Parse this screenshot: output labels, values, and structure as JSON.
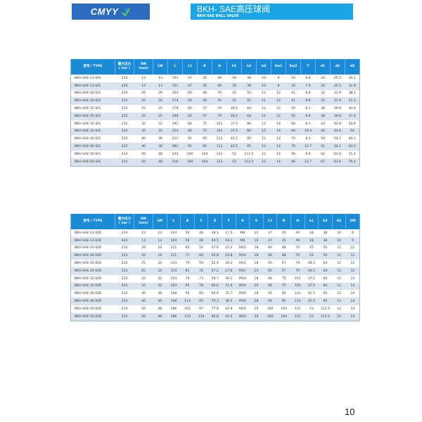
{
  "header": {
    "logo_text": "CMYY",
    "title": "BKH- SAE高压球阀",
    "subtitle": "BKH-SAE BALL VALVE",
    "colors": {
      "logo_bg": "#2b6cc0",
      "title_bg": "#1aa6e6",
      "table_header": "#1b8bd6",
      "row_alt": "#d9e3ee"
    }
  },
  "table1": {
    "columns": [
      [
        "型号 / TYPE",
        ""
      ],
      [
        "最大压力",
        "( bar )"
      ],
      [
        "DN",
        "(mm)"
      ],
      [
        "LW",
        ""
      ],
      [
        "L",
        ""
      ],
      [
        "L1",
        ""
      ],
      [
        "B",
        ""
      ],
      [
        "H",
        ""
      ],
      [
        "h1",
        ""
      ],
      [
        "h2",
        ""
      ],
      [
        "h3",
        ""
      ],
      [
        "Sw1",
        ""
      ],
      [
        "Sw2",
        ""
      ],
      [
        "T",
        ""
      ],
      [
        "d1",
        ""
      ],
      [
        "d2",
        ""
      ],
      [
        "d3",
        ""
      ]
    ],
    "rows": [
      [
        "BKH-SAE-13-S/S",
        "210",
        "13",
        "13",
        "151",
        "47",
        "35",
        "49",
        "18",
        "38",
        "10",
        "9",
        "10",
        "6.8",
        "24",
        "25.5",
        "30.2"
      ],
      [
        "BKH-SAE-13-S/S",
        "420",
        "13",
        "13",
        "151",
        "47",
        "35",
        "49",
        "18",
        "38",
        "10",
        "9",
        "10",
        "7.9",
        "24",
        "25.5",
        "31.8"
      ],
      [
        "BKH-SAE-20-S/S",
        "210",
        "20",
        "20",
        "162",
        "60",
        "48",
        "70",
        "25",
        "55",
        "11",
        "12",
        "41",
        "6.8",
        "32",
        "31.9",
        "38.1"
      ],
      [
        "BKH-SAE-20-S/S",
        "315",
        "20",
        "20",
        "174",
        "60",
        "48",
        "70",
        "25",
        "55",
        "11",
        "12",
        "41",
        "8.9",
        "32",
        "31.9",
        "41.3"
      ],
      [
        "BKH-SAE-25-S/S",
        "210",
        "25",
        "25",
        "178",
        "65",
        "57",
        "79",
        "28.5",
        "64",
        "11",
        "12",
        "50",
        "8.1",
        "38",
        "39.8",
        "44.4"
      ],
      [
        "BKH-SAE-25-S/S",
        "315",
        "25",
        "25",
        "198",
        "65",
        "57",
        "79",
        "28.5",
        "64",
        "11",
        "12",
        "50",
        "9.6",
        "38",
        "39.8",
        "47.6"
      ],
      [
        "BKH-SAE-32-S/S",
        "210",
        "32",
        "32",
        "191",
        "84",
        "75",
        "101",
        "37.5",
        "86",
        "12",
        "14",
        "60",
        "8.1",
        "43",
        "44.6",
        "50.8"
      ],
      [
        "BKH-SAE-32-S/S",
        "315",
        "32",
        "32",
        "223",
        "84",
        "75",
        "101",
        "37.5",
        "84",
        "12",
        "14",
        "60",
        "10.4",
        "44",
        "44.6",
        "54"
      ],
      [
        "BKH-SAE-40-S/S",
        "210",
        "40",
        "36",
        "231",
        "91",
        "85",
        "112",
        "42.5",
        "95",
        "12",
        "14",
        "70",
        "8.1",
        "50",
        "54.1",
        "60.3"
      ],
      [
        "BKH-SAE-40-S/S",
        "315",
        "40",
        "36",
        "281",
        "91",
        "85",
        "112",
        "42.5",
        "95",
        "12",
        "14",
        "70",
        "12.7",
        "51",
        "54.1",
        "63.5"
      ],
      [
        "BKH-SAE-50-S/S",
        "210",
        "50",
        "48",
        "232",
        "100",
        "104",
        "131",
        "53",
        "112.5",
        "12",
        "14",
        "90",
        "9.6",
        "62",
        "63.6",
        "71.4"
      ],
      [
        "BKH-SAE-50-S/S",
        "315",
        "50",
        "48",
        "316",
        "100",
        "104",
        "131",
        "53",
        "112.5",
        "12",
        "14",
        "90",
        "12.7",
        "67",
        "63.6",
        "79.4"
      ]
    ]
  },
  "table2": {
    "columns": [
      [
        "型号 / TYPE",
        ""
      ],
      [
        "最大压力",
        "( bar )"
      ],
      [
        "DN",
        "(mm)"
      ],
      [
        "LW",
        ""
      ],
      [
        "L",
        ""
      ],
      [
        "A",
        ""
      ],
      [
        "C",
        ""
      ],
      [
        "E",
        ""
      ],
      [
        "F",
        ""
      ],
      [
        "G",
        ""
      ],
      [
        "S",
        ""
      ],
      [
        "L1",
        ""
      ],
      [
        "B",
        ""
      ],
      [
        "H",
        ""
      ],
      [
        "h1",
        ""
      ],
      [
        "h2",
        ""
      ],
      [
        "h3",
        ""
      ],
      [
        "SW",
        ""
      ]
    ],
    "rows": [
      [
        "BKH-SAE-13-D/D",
        "210",
        "13",
        "13",
        "104",
        "54",
        "46",
        "38.1",
        "17.5",
        "M8",
        "15",
        "47",
        "35",
        "49",
        "18",
        "38",
        "10",
        "9"
      ],
      [
        "BKH-SAE-13-D/D",
        "420",
        "13",
        "13",
        "104",
        "56",
        "48",
        "40.5",
        "18.2",
        "M8",
        "16",
        "47",
        "35",
        "49",
        "18",
        "38",
        "10",
        "9"
      ],
      [
        "BKH-SAE-20-D/D",
        "210",
        "20",
        "19",
        "121",
        "65",
        "52",
        "47.6",
        "22.3",
        "M10",
        "18",
        "60",
        "48",
        "70",
        "25",
        "55",
        "11",
        "12"
      ],
      [
        "BKH-SAE-20-D/D",
        "315",
        "20",
        "19",
        "121",
        "71",
        "60",
        "50.8",
        "23.8",
        "M10",
        "18",
        "60",
        "48",
        "70",
        "25",
        "55",
        "11",
        "12"
      ],
      [
        "BKH-SAE-25-D/D",
        "210",
        "25",
        "24",
        "133",
        "70",
        "59",
        "52.4",
        "26.2",
        "M12",
        "18",
        "65",
        "57",
        "79",
        "28.5",
        "64",
        "11",
        "12"
      ],
      [
        "BKH-SAE-25-D/D",
        "315",
        "25",
        "24",
        "133",
        "81",
        "70",
        "57.2",
        "27.8",
        "M12",
        "24",
        "65",
        "57",
        "79",
        "28.5",
        "64",
        "11",
        "12"
      ],
      [
        "BKH-SAE-32-D/D",
        "210",
        "32",
        "32",
        "163",
        "79",
        "73",
        "58.7",
        "30.2",
        "M14",
        "18",
        "84",
        "75",
        "101",
        "37.5",
        "84",
        "12",
        "14"
      ],
      [
        "BKH-SAE-32-D/D",
        "315",
        "32",
        "32",
        "163",
        "95",
        "78",
        "66.6",
        "31.8",
        "M14",
        "26",
        "84",
        "75",
        "101",
        "37.5",
        "84",
        "12",
        "14"
      ],
      [
        "BKH-SAE-40-D/D",
        "210",
        "40",
        "36",
        "168",
        "94",
        "83",
        "69.9",
        "35.7",
        "M16",
        "18",
        "91",
        "85",
        "112",
        "42.5",
        "95",
        "12",
        "14"
      ],
      [
        "BKH-SAE-40-D/D",
        "315",
        "40",
        "36",
        "168",
        "113",
        "95",
        "79.3",
        "36.5",
        "M16",
        "28",
        "91",
        "85",
        "112",
        "42.5",
        "95",
        "12",
        "14"
      ],
      [
        "BKH-SAE-50-D/D",
        "210",
        "50",
        "48",
        "186",
        "102",
        "97",
        "77.8",
        "42.9",
        "M20",
        "25",
        "100",
        "104",
        "131",
        "53",
        "112.5",
        "12",
        "14"
      ],
      [
        "BKH-SAE-50-D/D",
        "315",
        "50",
        "48",
        "186",
        "133",
        "114",
        "96.8",
        "44.5",
        "M20",
        "30",
        "100",
        "104",
        "131",
        "53",
        "112.5",
        "12",
        "14"
      ]
    ]
  },
  "page_number": "10"
}
